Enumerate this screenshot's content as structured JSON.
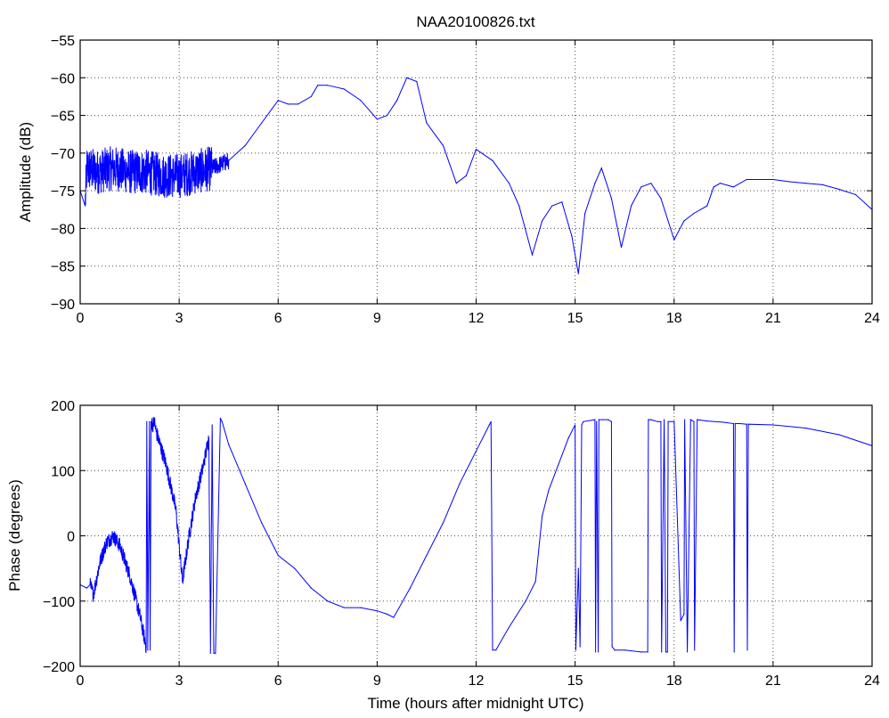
{
  "chart_data": [
    {
      "type": "line",
      "title": "NAA20100826.txt",
      "xlabel": "",
      "ylabel": "Amplitude (dB)",
      "xlim": [
        0,
        24
      ],
      "ylim": [
        -90,
        -55
      ],
      "xticks": [
        "0",
        "3",
        "6",
        "9",
        "12",
        "15",
        "18",
        "21",
        "24"
      ],
      "yticks": [
        "−55",
        "−60",
        "−65",
        "−70",
        "−75",
        "−80",
        "−85",
        "−90"
      ],
      "grid": true,
      "color": "#0000ff",
      "noise_ranges": [
        [
          0.15,
          4.0,
          3.0
        ],
        [
          4.0,
          4.6,
          1.2
        ]
      ],
      "series": [
        {
          "x": [
            0,
            0.15,
            0.2,
            0.5,
            1.0,
            1.5,
            2.0,
            2.5,
            3.0,
            3.5,
            4.0,
            4.5,
            5.0,
            5.5,
            6.0,
            6.3,
            6.6,
            7.0,
            7.2,
            7.5,
            8.0,
            8.5,
            9.0,
            9.3,
            9.6,
            9.9,
            10.2,
            10.5,
            11.0,
            11.4,
            11.7,
            12.0,
            12.5,
            13.0,
            13.3,
            13.7,
            14.0,
            14.3,
            14.6,
            14.9,
            15.1,
            15.3,
            15.6,
            15.8,
            16.1,
            16.4,
            16.7,
            17.0,
            17.3,
            17.6,
            18.0,
            18.3,
            18.6,
            19.0,
            19.2,
            19.4,
            19.8,
            20.2,
            21.0,
            21.5,
            22.0,
            22.5,
            23.0,
            23.5,
            24.0
          ],
          "values": [
            -75,
            -77,
            -72,
            -72.5,
            -72,
            -72.5,
            -72.5,
            -73,
            -73,
            -72.5,
            -72,
            -71,
            -69,
            -66,
            -63,
            -63.5,
            -63.5,
            -62.5,
            -61,
            -61,
            -61.5,
            -63,
            -65.5,
            -65,
            -63,
            -60,
            -60.5,
            -66,
            -69,
            -74,
            -73,
            -69.5,
            -71,
            -74,
            -77,
            -83.5,
            -79,
            -77,
            -76.5,
            -81,
            -86,
            -78,
            -74,
            -72,
            -76,
            -82.5,
            -77,
            -74.5,
            -74,
            -76,
            -81.5,
            -79,
            -78,
            -77,
            -74.5,
            -74,
            -74.5,
            -73.5,
            -73.5,
            -73.8,
            -74,
            -74.2,
            -74.8,
            -75.5,
            -77.5
          ]
        }
      ]
    },
    {
      "type": "line",
      "title": "",
      "xlabel": "Time (hours after midnight UTC)",
      "ylabel": "Phase (degrees)",
      "xlim": [
        0,
        24
      ],
      "ylim": [
        -200,
        200
      ],
      "xticks": [
        "0",
        "3",
        "6",
        "9",
        "12",
        "15",
        "18",
        "21",
        "24"
      ],
      "yticks": [
        "200",
        "100",
        "0",
        "−100",
        "−200"
      ],
      "grid": true,
      "color": "#0000ff",
      "noise_ranges": [
        [
          0.3,
          4.0,
          12.0
        ]
      ],
      "series": [
        {
          "x": [
            0,
            0.2,
            0.3,
            0.4,
            0.6,
            0.8,
            1.0,
            1.2,
            1.5,
            1.8,
            2.0,
            2.02,
            2.05,
            2.1,
            2.12,
            2.15,
            2.2,
            2.25,
            2.3,
            2.6,
            2.9,
            3.1,
            3.3,
            3.5,
            3.7,
            3.9,
            3.95,
            4.0,
            4.05,
            4.1,
            4.25,
            4.3,
            4.5,
            5.0,
            5.5,
            6.0,
            6.5,
            7.0,
            7.5,
            8.0,
            8.5,
            9.0,
            9.3,
            9.5,
            10.0,
            10.5,
            11.0,
            11.5,
            12.0,
            12.4,
            12.45,
            12.5,
            12.6,
            13.0,
            13.5,
            13.8,
            14.0,
            14.2,
            14.5,
            14.8,
            15.0,
            15.02,
            15.1,
            15.15,
            15.2,
            15.25,
            15.6,
            15.62,
            15.65,
            15.7,
            15.72,
            16.0,
            16.1,
            16.12,
            16.2,
            16.5,
            17.0,
            17.2,
            17.22,
            17.3,
            17.5,
            17.6,
            17.62,
            17.7,
            17.75,
            17.8,
            17.82,
            18.0,
            18.2,
            18.3,
            18.32,
            18.4,
            18.5,
            18.6,
            18.62,
            18.7,
            19.0,
            19.5,
            19.8,
            19.82,
            19.85,
            20.0,
            20.2,
            20.22,
            20.25,
            21.0,
            22.0,
            23.0,
            24.0
          ],
          "values": [
            -75,
            -80,
            -75,
            -90,
            -40,
            -10,
            0,
            -15,
            -60,
            -120,
            -170,
            175,
            -175,
            175,
            -175,
            175,
            170,
            175,
            160,
            110,
            40,
            -70,
            0,
            60,
            100,
            150,
            -180,
            170,
            -180,
            -180,
            180,
            175,
            140,
            80,
            20,
            -30,
            -50,
            -80,
            -100,
            -110,
            -110,
            -115,
            -120,
            -125,
            -80,
            -30,
            20,
            80,
            130,
            170,
            175,
            -175,
            -175,
            -140,
            -100,
            -70,
            30,
            70,
            110,
            150,
            170,
            -175,
            -50,
            -170,
            170,
            175,
            178,
            -178,
            175,
            -178,
            178,
            178,
            175,
            -170,
            -175,
            -175,
            -178,
            -178,
            178,
            178,
            175,
            175,
            -178,
            178,
            -178,
            -178,
            175,
            175,
            -130,
            -120,
            178,
            -178,
            178,
            175,
            -175,
            178,
            176,
            174,
            172,
            -178,
            172,
            172,
            171,
            -175,
            171,
            170,
            165,
            155,
            138
          ]
        }
      ]
    }
  ]
}
